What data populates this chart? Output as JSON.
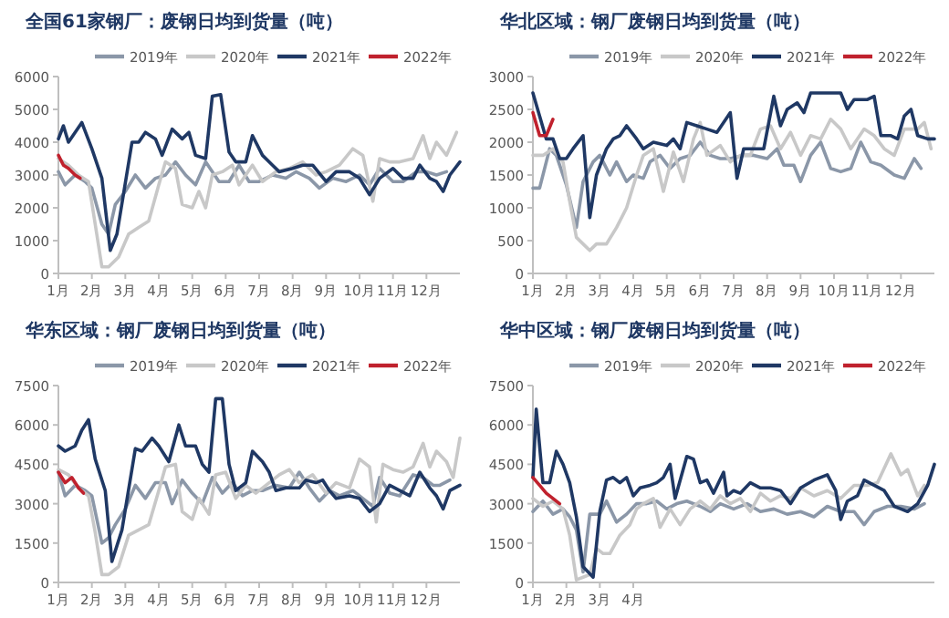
{
  "chart_data": [
    {
      "type": "line",
      "title": "全国61家钢厂：废钢日均到货量（吨）",
      "legend": "top right",
      "xlim": [
        1,
        13
      ],
      "xticks": [
        {
          "value": 1,
          "label": "1月"
        },
        {
          "value": 2,
          "label": "2月"
        },
        {
          "value": 3,
          "label": "3月"
        },
        {
          "value": 4,
          "label": "4月"
        },
        {
          "value": 5,
          "label": "5月"
        },
        {
          "value": 6,
          "label": "6月"
        },
        {
          "value": 7,
          "label": "7月"
        },
        {
          "value": 8,
          "label": "8月"
        },
        {
          "value": 9,
          "label": "9月"
        },
        {
          "value": 10,
          "label": "10月"
        },
        {
          "value": 11,
          "label": "11月"
        },
        {
          "value": 12,
          "label": "12月"
        }
      ],
      "ylim": [
        0,
        6000
      ],
      "yticks": [
        0,
        1000,
        2000,
        3000,
        4000,
        5000,
        6000
      ],
      "series": [
        {
          "name": "2019年",
          "color": "#8b97a8",
          "x": [
            1,
            1.2,
            1.5,
            1.8,
            2,
            2.3,
            2.5,
            2.7,
            3,
            3.3,
            3.6,
            3.9,
            4.2,
            4.5,
            4.8,
            5.1,
            5.4,
            5.8,
            6.1,
            6.4,
            6.7,
            7,
            7.4,
            7.8,
            8.1,
            8.5,
            8.8,
            9.2,
            9.6,
            10,
            10.3,
            10.6,
            11,
            11.3,
            11.7,
            12,
            12.3,
            12.6
          ],
          "values": [
            3100,
            2700,
            3000,
            2800,
            2600,
            1500,
            1200,
            2100,
            2500,
            3000,
            2600,
            2900,
            3000,
            3400,
            3000,
            2700,
            3400,
            2800,
            2800,
            3300,
            2800,
            2800,
            3000,
            2900,
            3100,
            2900,
            2600,
            2900,
            2800,
            3000,
            2700,
            3200,
            2800,
            2800,
            3100,
            3100,
            3000,
            3100
          ]
        },
        {
          "name": "2020年",
          "color": "#c8c8c8",
          "x": [
            1,
            1.3,
            1.6,
            1.9,
            2.1,
            2.3,
            2.5,
            2.8,
            3.1,
            3.4,
            3.7,
            4,
            4.2,
            4.5,
            4.7,
            5,
            5.2,
            5.4,
            5.6,
            5.9,
            6.2,
            6.4,
            6.8,
            7.1,
            7.5,
            7.9,
            8.3,
            8.7,
            9,
            9.4,
            9.8,
            10.1,
            10.4,
            10.6,
            10.9,
            11.2,
            11.6,
            11.9,
            12.1,
            12.3,
            12.6,
            12.9
          ],
          "values": [
            3500,
            3300,
            3000,
            2800,
            1500,
            200,
            200,
            500,
            1200,
            1400,
            1600,
            2700,
            3400,
            3200,
            2100,
            2000,
            2500,
            2000,
            3000,
            3100,
            3300,
            2700,
            3300,
            2800,
            3100,
            3200,
            3400,
            3000,
            3100,
            3300,
            3800,
            3600,
            2200,
            3500,
            3400,
            3400,
            3500,
            4200,
            3500,
            4000,
            3600,
            4300
          ]
        },
        {
          "name": "2021年",
          "color": "#1f3864",
          "x": [
            1,
            1.15,
            1.3,
            1.5,
            1.7,
            2,
            2.3,
            2.55,
            2.75,
            3.2,
            3.4,
            3.6,
            3.9,
            4.1,
            4.4,
            4.7,
            4.9,
            5.1,
            5.4,
            5.6,
            5.85,
            6.1,
            6.3,
            6.6,
            6.8,
            7.1,
            7.4,
            7.6,
            8,
            8.3,
            8.6,
            9,
            9.3,
            9.7,
            10,
            10.3,
            10.6,
            11,
            11.3,
            11.6,
            11.8,
            12.1,
            12.3,
            12.5,
            12.7,
            13
          ],
          "values": [
            4100,
            4500,
            4000,
            4300,
            4600,
            3800,
            2900,
            700,
            1200,
            4000,
            4000,
            4300,
            4100,
            3600,
            4400,
            4100,
            4300,
            3600,
            3500,
            5400,
            5450,
            3700,
            3400,
            3400,
            4200,
            3600,
            3300,
            3100,
            3200,
            3300,
            3300,
            2800,
            3100,
            3100,
            2900,
            2400,
            2900,
            3200,
            2900,
            2900,
            3300,
            2900,
            2800,
            2500,
            3000,
            3400
          ]
        },
        {
          "name": "2022年",
          "color": "#c0212d",
          "x": [
            1,
            1.15,
            1.3,
            1.5,
            1.65
          ],
          "values": [
            3600,
            3300,
            3200,
            3000,
            2900
          ]
        }
      ]
    },
    {
      "type": "line",
      "title": "华北区域：钢厂废钢日均到货量（吨）",
      "legend": "top right",
      "xlim": [
        1,
        13
      ],
      "xticks": [
        {
          "value": 1,
          "label": "1月"
        },
        {
          "value": 2,
          "label": "2月"
        },
        {
          "value": 3,
          "label": "3月"
        },
        {
          "value": 4,
          "label": "4月"
        },
        {
          "value": 5,
          "label": "5月"
        },
        {
          "value": 6,
          "label": "6月"
        },
        {
          "value": 7,
          "label": "7月"
        },
        {
          "value": 8,
          "label": "8月"
        },
        {
          "value": 9,
          "label": "9月"
        },
        {
          "value": 10,
          "label": "10月"
        },
        {
          "value": 11,
          "label": "11月"
        },
        {
          "value": 12,
          "label": "12月"
        }
      ],
      "ylim": [
        0,
        3000
      ],
      "yticks": [
        0,
        500,
        1000,
        1500,
        2000,
        2500,
        3000
      ],
      "series": [
        {
          "name": "2019年",
          "color": "#8b97a8",
          "x": [
            1,
            1.2,
            1.5,
            1.7,
            2,
            2.3,
            2.5,
            2.8,
            3,
            3.3,
            3.5,
            3.8,
            4,
            4.3,
            4.5,
            4.8,
            5.1,
            5.4,
            5.7,
            6,
            6.3,
            6.6,
            6.9,
            7.3,
            7.6,
            8,
            8.3,
            8.5,
            8.8,
            9,
            9.3,
            9.6,
            9.9,
            10.2,
            10.5,
            10.8,
            11.1,
            11.4,
            11.8,
            12.1,
            12.4,
            12.6
          ],
          "values": [
            1300,
            1300,
            1900,
            1800,
            1350,
            700,
            1400,
            1700,
            1800,
            1500,
            1700,
            1400,
            1500,
            1450,
            1700,
            1800,
            1600,
            1750,
            1800,
            2000,
            1800,
            1750,
            1750,
            1800,
            1800,
            1750,
            1900,
            1650,
            1650,
            1400,
            1800,
            2000,
            1600,
            1550,
            1600,
            2000,
            1700,
            1650,
            1500,
            1450,
            1750,
            1600
          ]
        },
        {
          "name": "2020年",
          "color": "#c8c8c8",
          "x": [
            1,
            1.3,
            1.6,
            1.9,
            2.1,
            2.3,
            2.5,
            2.7,
            2.9,
            3.2,
            3.5,
            3.8,
            4.1,
            4.3,
            4.6,
            4.9,
            5.2,
            5.5,
            5.8,
            6,
            6.2,
            6.6,
            6.9,
            7.2,
            7.5,
            7.8,
            8.1,
            8.4,
            8.7,
            9,
            9.3,
            9.6,
            9.9,
            10.2,
            10.5,
            10.9,
            11.2,
            11.5,
            11.8,
            12.1,
            12.5,
            12.7,
            12.9
          ],
          "values": [
            1800,
            1800,
            1900,
            1700,
            1100,
            550,
            450,
            350,
            450,
            450,
            700,
            1000,
            1500,
            1800,
            1900,
            1250,
            1850,
            1400,
            2050,
            2300,
            1800,
            1950,
            1700,
            1800,
            1800,
            2200,
            2250,
            1900,
            2150,
            1800,
            2100,
            2050,
            2350,
            2200,
            1900,
            2200,
            2100,
            1900,
            1800,
            2200,
            2200,
            2300,
            1900
          ]
        },
        {
          "name": "2021年",
          "color": "#1f3864",
          "x": [
            1,
            1.2,
            1.4,
            1.6,
            1.8,
            2,
            2.2,
            2.5,
            2.7,
            2.9,
            3.2,
            3.4,
            3.6,
            3.8,
            4.1,
            4.3,
            4.6,
            5,
            5.2,
            5.4,
            5.6,
            5.9,
            6.2,
            6.5,
            6.9,
            7.1,
            7.3,
            7.6,
            7.9,
            8.2,
            8.4,
            8.6,
            8.9,
            9.1,
            9.3,
            9.7,
            10.2,
            10.4,
            10.6,
            11,
            11.2,
            11.4,
            11.7,
            11.9,
            12.1,
            12.3,
            12.5,
            12.8,
            13
          ],
          "values": [
            2750,
            2400,
            2050,
            2050,
            1750,
            1750,
            1900,
            2100,
            850,
            1500,
            1900,
            2050,
            2100,
            2250,
            2050,
            1900,
            2000,
            1950,
            2050,
            1900,
            2300,
            2250,
            2200,
            2150,
            2450,
            1450,
            1900,
            1900,
            1900,
            2700,
            2250,
            2500,
            2600,
            2450,
            2750,
            2750,
            2750,
            2500,
            2650,
            2650,
            2700,
            2100,
            2100,
            2050,
            2400,
            2500,
            2100,
            2050,
            2050
          ]
        },
        {
          "name": "2022年",
          "color": "#c0212d",
          "x": [
            1,
            1.2,
            1.4,
            1.6
          ],
          "values": [
            2450,
            2100,
            2100,
            2350
          ]
        }
      ]
    },
    {
      "type": "line",
      "title": "华东区域：钢厂废钢日均到货量（吨）",
      "legend": "top right",
      "xlim": [
        1,
        13
      ],
      "xticks": [
        {
          "value": 1,
          "label": "1月"
        },
        {
          "value": 2,
          "label": "2月"
        },
        {
          "value": 3,
          "label": "3月"
        },
        {
          "value": 4,
          "label": "4月"
        },
        {
          "value": 5,
          "label": "5月"
        },
        {
          "value": 6,
          "label": "6月"
        },
        {
          "value": 7,
          "label": "7月"
        },
        {
          "value": 8,
          "label": "8月"
        },
        {
          "value": 9,
          "label": "9月"
        },
        {
          "value": 10,
          "label": "10月"
        },
        {
          "value": 11,
          "label": "11月"
        },
        {
          "value": 12,
          "label": "12月"
        }
      ],
      "ylim": [
        0,
        7500
      ],
      "yticks": [
        0,
        1500,
        3000,
        4500,
        6000,
        7500
      ],
      "series": [
        {
          "name": "2019年",
          "color": "#8b97a8",
          "x": [
            1,
            1.2,
            1.5,
            1.8,
            2,
            2.3,
            2.5,
            2.7,
            3,
            3.3,
            3.6,
            3.9,
            4.2,
            4.4,
            4.7,
            5,
            5.3,
            5.6,
            5.9,
            6.2,
            6.5,
            6.8,
            7.1,
            7.5,
            7.9,
            8.2,
            8.5,
            8.8,
            9.1,
            9.4,
            9.8,
            10.1,
            10.4,
            10.6,
            10.9,
            11.2,
            11.6,
            11.9,
            12.2,
            12.4,
            12.7
          ],
          "values": [
            4200,
            3300,
            3700,
            3500,
            3300,
            1500,
            1700,
            2200,
            2800,
            3700,
            3200,
            3800,
            3800,
            3000,
            3900,
            3400,
            3000,
            4000,
            3400,
            3800,
            3300,
            3500,
            3500,
            3700,
            3600,
            4200,
            3600,
            3100,
            3500,
            3300,
            3500,
            3200,
            2900,
            4000,
            3400,
            3300,
            4100,
            4000,
            3700,
            3700,
            3900
          ]
        },
        {
          "name": "2020年",
          "color": "#c8c8c8",
          "x": [
            1,
            1.3,
            1.6,
            1.9,
            2.1,
            2.3,
            2.5,
            2.8,
            3.1,
            3.4,
            3.7,
            4,
            4.2,
            4.5,
            4.7,
            5,
            5.2,
            5.5,
            5.7,
            6,
            6.3,
            6.6,
            6.9,
            7.3,
            7.6,
            7.9,
            8.2,
            8.6,
            9,
            9.3,
            9.7,
            10,
            10.3,
            10.5,
            10.7,
            11,
            11.3,
            11.6,
            11.9,
            12.1,
            12.3,
            12.6,
            12.8,
            13
          ],
          "values": [
            4300,
            4100,
            3600,
            3300,
            1900,
            300,
            300,
            600,
            1800,
            2000,
            2200,
            3500,
            4400,
            4500,
            2700,
            2400,
            3200,
            2600,
            4100,
            4200,
            3200,
            3700,
            3400,
            3800,
            4100,
            4300,
            3800,
            4100,
            3400,
            3800,
            3600,
            4700,
            4400,
            2300,
            4500,
            4300,
            4200,
            4400,
            5300,
            4400,
            5000,
            4600,
            4000,
            5500
          ]
        },
        {
          "name": "2021年",
          "color": "#1f3864",
          "x": [
            1,
            1.2,
            1.5,
            1.7,
            1.9,
            2.1,
            2.4,
            2.6,
            2.9,
            3.3,
            3.5,
            3.8,
            4,
            4.3,
            4.6,
            4.8,
            5.1,
            5.3,
            5.5,
            5.7,
            5.9,
            6.1,
            6.3,
            6.6,
            6.8,
            7.1,
            7.3,
            7.5,
            7.8,
            8.2,
            8.4,
            8.7,
            8.9,
            9.1,
            9.3,
            9.7,
            10,
            10.3,
            10.6,
            10.9,
            11.2,
            11.5,
            11.8,
            12.1,
            12.3,
            12.5,
            12.7,
            13
          ],
          "values": [
            5200,
            5000,
            5200,
            5800,
            6200,
            4700,
            3500,
            800,
            2000,
            5100,
            5000,
            5500,
            5200,
            4600,
            6000,
            5200,
            5200,
            4500,
            4200,
            7000,
            7000,
            4500,
            3500,
            3800,
            5000,
            4600,
            4200,
            3500,
            3600,
            3600,
            3900,
            3800,
            3900,
            3500,
            3200,
            3300,
            3200,
            2700,
            3000,
            3700,
            3500,
            3300,
            4200,
            3600,
            3300,
            2800,
            3500,
            3700
          ]
        },
        {
          "name": "2022年",
          "color": "#c0212d",
          "x": [
            1,
            1.2,
            1.4,
            1.6,
            1.75
          ],
          "values": [
            4200,
            3800,
            4000,
            3600,
            3400
          ]
        }
      ]
    },
    {
      "type": "line",
      "title": "华中区域：钢厂废钢日均到货量（吨）",
      "legend": "top right",
      "xlim": [
        1,
        13
      ],
      "xticks": [
        {
          "value": 1,
          "label": "1月"
        },
        {
          "value": 2,
          "label": "2月"
        },
        {
          "value": 3,
          "label": "3月"
        },
        {
          "value": 4,
          "label": "4月"
        }
      ],
      "ylim": [
        0,
        7500
      ],
      "yticks": [
        0,
        1500,
        3000,
        4500,
        6000,
        7500
      ],
      "series": [
        {
          "name": "2019年",
          "color": "#8b97a8",
          "x": [
            1,
            1.3,
            1.6,
            1.9,
            2.1,
            2.3,
            2.5,
            2.7,
            3,
            3.2,
            3.5,
            3.8,
            4.1,
            4.4,
            4.7,
            5,
            5.3,
            5.6,
            6,
            6.3,
            6.6,
            7,
            7.4,
            7.8,
            8.2,
            8.6,
            9,
            9.4,
            9.8,
            10.2,
            10.6,
            10.9,
            11.2,
            11.6,
            12,
            12.4,
            12.7
          ],
          "values": [
            2700,
            3100,
            2600,
            2800,
            2500,
            2000,
            400,
            2600,
            2600,
            3100,
            2300,
            2600,
            3000,
            3000,
            3100,
            2800,
            3000,
            3100,
            2900,
            2700,
            3000,
            2800,
            3000,
            2700,
            2800,
            2600,
            2700,
            2500,
            2900,
            2700,
            2700,
            2200,
            2700,
            2900,
            2900,
            2800,
            3000
          ]
        },
        {
          "name": "2020年",
          "color": "#c8c8c8",
          "x": [
            1,
            1.3,
            1.6,
            1.9,
            2.1,
            2.3,
            2.5,
            2.7,
            2.9,
            3.1,
            3.3,
            3.6,
            3.9,
            4.1,
            4.3,
            4.6,
            4.8,
            5.1,
            5.4,
            5.7,
            6,
            6.3,
            6.6,
            6.9,
            7.2,
            7.5,
            7.8,
            8.1,
            8.4,
            8.7,
            9,
            9.4,
            9.8,
            10.2,
            10.6,
            11,
            11.3,
            11.7,
            12,
            12.2,
            12.5,
            12.7
          ],
          "values": [
            3200,
            2900,
            3100,
            2800,
            1800,
            100,
            200,
            300,
            1300,
            1100,
            1100,
            1800,
            2200,
            2800,
            3000,
            3200,
            2100,
            2800,
            2200,
            2800,
            3100,
            2800,
            3300,
            3000,
            3200,
            2700,
            3400,
            3100,
            3300,
            3200,
            3600,
            3300,
            3500,
            3200,
            3700,
            3700,
            3800,
            4900,
            4100,
            4300,
            3300,
            3700
          ]
        },
        {
          "name": "2021年",
          "color": "#1f3864",
          "x": [
            1,
            1.1,
            1.3,
            1.5,
            1.7,
            1.9,
            2.1,
            2.3,
            2.5,
            2.8,
            3,
            3.2,
            3.4,
            3.6,
            3.8,
            4,
            4.2,
            4.5,
            4.7,
            4.9,
            5.1,
            5.25,
            5.6,
            5.8,
            6,
            6.2,
            6.4,
            6.7,
            6.8,
            7,
            7.2,
            7.5,
            7.8,
            8.1,
            8.4,
            8.7,
            9,
            9.4,
            9.8,
            10.05,
            10.2,
            10.4,
            10.7,
            10.9,
            11.2,
            11.5,
            11.8,
            12,
            12.2,
            12.5,
            12.8,
            13
          ],
          "values": [
            4000,
            6600,
            3800,
            3800,
            5000,
            4500,
            3800,
            2500,
            600,
            200,
            2700,
            3900,
            4000,
            3800,
            4000,
            3300,
            3600,
            3700,
            3800,
            4000,
            4500,
            3200,
            4800,
            4700,
            3800,
            3900,
            3400,
            4200,
            3300,
            3500,
            3400,
            3800,
            3600,
            3600,
            3500,
            3000,
            3600,
            3900,
            4100,
            3500,
            2400,
            3100,
            3300,
            3900,
            3700,
            3500,
            2900,
            2800,
            2700,
            3000,
            3700,
            4500
          ]
        },
        {
          "name": "2022年",
          "color": "#c0212d",
          "x": [
            1,
            1.2,
            1.4,
            1.6,
            1.8
          ],
          "values": [
            4000,
            3700,
            3400,
            3200,
            3000
          ]
        }
      ]
    }
  ]
}
